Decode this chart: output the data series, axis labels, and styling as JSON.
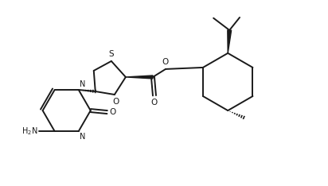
{
  "background": "#ffffff",
  "line_color": "#1a1a1a",
  "line_width": 1.4,
  "fig_width": 4.12,
  "fig_height": 2.34,
  "dpi": 100,
  "xlim": [
    0.0,
    10.0
  ],
  "ylim": [
    0.0,
    5.8
  ]
}
